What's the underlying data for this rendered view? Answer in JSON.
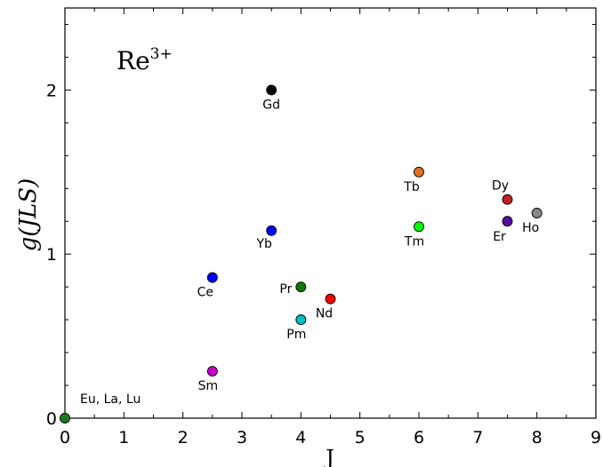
{
  "chart_data": {
    "type": "scatter",
    "title": "",
    "annotation_main": "Re",
    "annotation_sup": "3+",
    "xlabel": "J",
    "ylabel": "g(JLS)",
    "xlim": [
      0,
      9
    ],
    "ylim": [
      0,
      2.5
    ],
    "xticks": [
      "0",
      "1",
      "2",
      "3",
      "4",
      "5",
      "6",
      "7",
      "8",
      "9"
    ],
    "yticks": [
      "0",
      "1",
      "2"
    ],
    "grid": false,
    "points": [
      {
        "label": "Eu, La, Lu",
        "x": 0,
        "y": 0,
        "color": "#1f7a1f"
      },
      {
        "label": "Ce",
        "x": 2.5,
        "y": 0.857,
        "color": "#0000ff"
      },
      {
        "label": "Sm",
        "x": 2.5,
        "y": 0.286,
        "color": "#cc00cc"
      },
      {
        "label": "Gd",
        "x": 3.5,
        "y": 2.0,
        "color": "#000000"
      },
      {
        "label": "Yb",
        "x": 3.5,
        "y": 1.143,
        "color": "#0000ff"
      },
      {
        "label": "Pr",
        "x": 4.0,
        "y": 0.8,
        "color": "#0a7a0a"
      },
      {
        "label": "Pm",
        "x": 4.0,
        "y": 0.6,
        "color": "#00bfbf"
      },
      {
        "label": "Nd",
        "x": 4.5,
        "y": 0.727,
        "color": "#ff0000"
      },
      {
        "label": "Tb",
        "x": 6.0,
        "y": 1.5,
        "color": "#e07020"
      },
      {
        "label": "Tm",
        "x": 6.0,
        "y": 1.167,
        "color": "#00ff00"
      },
      {
        "label": "Dy",
        "x": 7.5,
        "y": 1.333,
        "color": "#c02020"
      },
      {
        "label": "Er",
        "x": 7.5,
        "y": 1.2,
        "color": "#5a0aa0"
      },
      {
        "label": "Ho",
        "x": 8.0,
        "y": 1.25,
        "color": "#888888"
      }
    ]
  }
}
